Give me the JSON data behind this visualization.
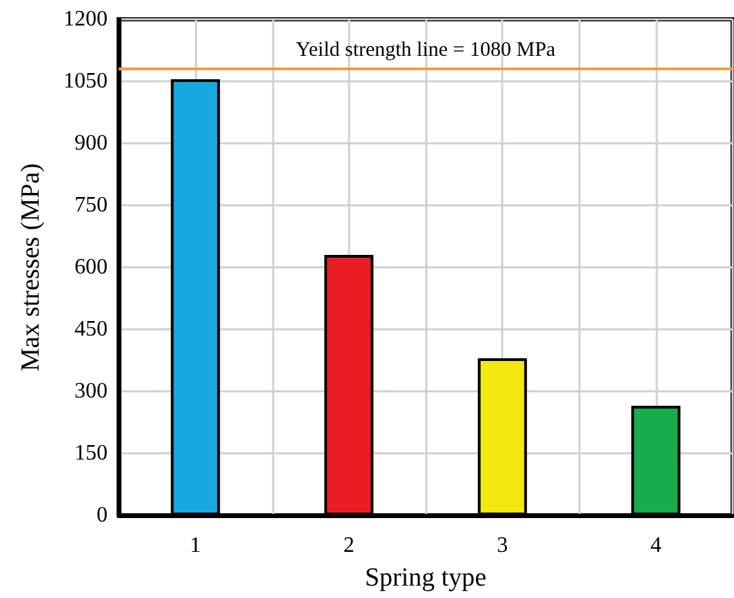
{
  "chart_data": {
    "type": "bar",
    "xlabel": "Spring type",
    "ylabel": "Max stresses (MPa)",
    "categories": [
      "1",
      "2",
      "3",
      "4"
    ],
    "values": [
      1055,
      630,
      380,
      265
    ],
    "colors": [
      "#17a8e0",
      "#ec1c24",
      "#f3e80f",
      "#16ad4a"
    ],
    "ylim": [
      0,
      1200
    ],
    "yticks": [
      0,
      150,
      300,
      450,
      600,
      750,
      900,
      1050,
      1200
    ],
    "grid": true,
    "ref_lines": [
      {
        "axis": "y",
        "value": 1080,
        "label": "Yeild strength line = 1080 MPa",
        "color": "#f39c45"
      }
    ]
  }
}
